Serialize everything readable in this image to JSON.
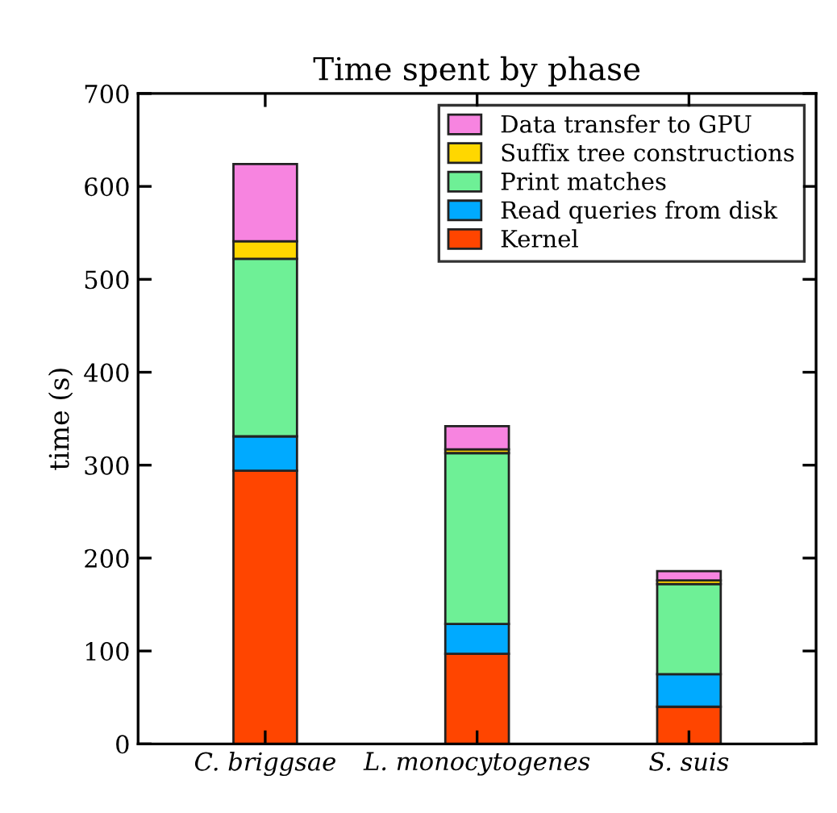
{
  "chart_data": {
    "type": "bar",
    "stacked": true,
    "title": "Time spent by phase",
    "ylabel": "time (s)",
    "categories": [
      "C. briggsae",
      "L. monocytogenes",
      "S. suis"
    ],
    "series": [
      {
        "name": "Kernel",
        "color": "#ff4500",
        "values": [
          294,
          97,
          40
        ]
      },
      {
        "name": "Read queries from disk",
        "color": "#00aaff",
        "values": [
          37,
          32,
          35
        ]
      },
      {
        "name": "Print matches",
        "color": "#6ef096",
        "values": [
          191,
          184,
          97
        ]
      },
      {
        "name": "Suffix tree constructions",
        "color": "#ffd700",
        "values": [
          19,
          4,
          4
        ]
      },
      {
        "name": "Data transfer to GPU",
        "color": "#f784e0",
        "values": [
          83,
          25,
          10
        ]
      }
    ],
    "ylim": [
      0,
      700
    ],
    "yticks": [
      0,
      100,
      200,
      300,
      400,
      500,
      600,
      700
    ],
    "grid": false,
    "legend": "top right"
  }
}
